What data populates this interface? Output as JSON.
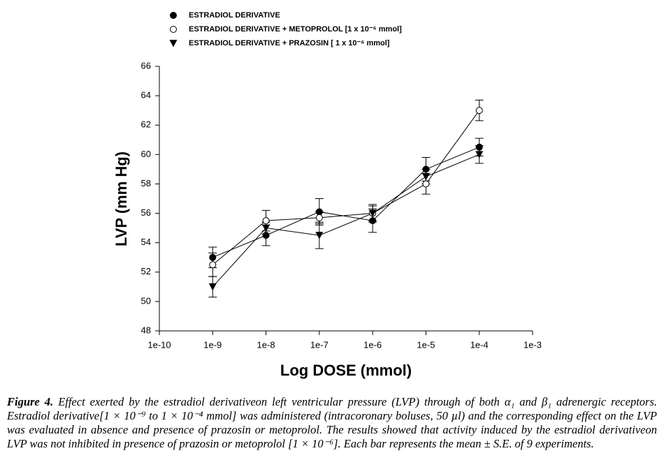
{
  "chart_data": {
    "type": "line",
    "xlabel": "Log DOSE (mmol)",
    "ylabel": "LVP (mm Hg)",
    "xscale": "log",
    "xlim": [
      1e-10,
      0.001
    ],
    "xticks": [
      1e-10,
      1e-09,
      1e-08,
      1e-07,
      {
        "value": 1e-06,
        "label": "1e-6"
      },
      {
        "value": 1e-05,
        "label": "1e-5"
      },
      {
        "value": 0.0001,
        "label": "1e-4"
      },
      {
        "value": 0.001,
        "label": "1e-3"
      }
    ],
    "ylim": [
      48,
      66
    ],
    "yticks": [
      48,
      50,
      52,
      54,
      56,
      58,
      60,
      62,
      64,
      66
    ],
    "grid": false,
    "legend": "top-left",
    "x": [
      1e-09,
      1e-08,
      1e-07,
      1e-06,
      1e-05,
      0.0001
    ],
    "series": [
      {
        "name": "ESTRADIOL DERIVATIVE",
        "color": "#000000",
        "marker": "circle-filled",
        "values": [
          53.0,
          54.5,
          56.1,
          55.5,
          59.0,
          60.5
        ],
        "errors": [
          0.7,
          0.7,
          0.9,
          0.8,
          0.8,
          0.6
        ]
      },
      {
        "name": "ESTRADIOL DERIVATIVE + METOPROLOL [1 x 10⁻⁶ mmol]",
        "color": "#000000",
        "marker": "circle-open",
        "values": [
          52.5,
          55.5,
          55.7,
          56.0,
          58.0,
          63.0
        ],
        "errors": [
          0.8,
          0.7,
          0.4,
          0.5,
          0.7,
          0.7
        ]
      },
      {
        "name": "ESTRADIOL DERIVATIVE + PRAZOSIN [ 1 x 10⁻⁶ mmol]",
        "color": "#000000",
        "marker": "triangle-down",
        "values": [
          51.0,
          55.0,
          54.5,
          56.0,
          58.5,
          60.0
        ],
        "errors": [
          0.7,
          0.4,
          0.9,
          0.6,
          0.5,
          0.6
        ]
      }
    ]
  },
  "caption": {
    "label": "Figure 4.",
    "text": "Effect exerted by the estradiol derivativeon left ventricular pressure (LVP) through of both α₁ and β₁ adrenergic receptors. Estradiol derivative[1 × 10⁻⁹ to 1 × 10⁻⁴ mmol] was administered (intracoronary boluses, 50 µl) and the corresponding effect on the LVP was evaluated in absence and presence of prazosin or metoprolol. The results showed that activity induced by the estradiol derivativeon LVP was not inhibited in presence of prazosin or metoprolol [1 × 10⁻⁶]. Each bar represents the mean ± S.E. of 9 experiments."
  }
}
